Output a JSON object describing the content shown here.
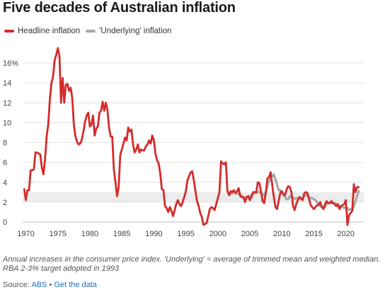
{
  "title": "Five decades of Australian inflation",
  "legend": [
    {
      "label": "Headline inflation",
      "color": "#d42b2b"
    },
    {
      "label": "'Underlying' inflation",
      "color": "#a9a9a9"
    }
  ],
  "note": "Annual increases in the consumer price index. 'Underlying' = average of trimmed mean and weighted median. RBA 2-3% target adopted in 1993",
  "source": {
    "prefix": "Source:",
    "name": "ABS",
    "separator": "•",
    "link": "Get the data"
  },
  "chart_data": {
    "type": "line",
    "title": "Five decades of Australian inflation",
    "xlabel": "",
    "ylabel": "",
    "xlim": [
      1969.5,
      2022.8
    ],
    "ylim": [
      -0.5,
      18
    ],
    "x_ticks": [
      1970,
      1975,
      1980,
      1985,
      1990,
      1995,
      2000,
      2005,
      2010,
      2015,
      2020
    ],
    "y_ticks": [
      0,
      2,
      4,
      6,
      8,
      10,
      12,
      14,
      16
    ],
    "y_tick_labels": [
      "0",
      "2",
      "4",
      "6",
      "8",
      "10",
      "12",
      "14",
      "16%"
    ],
    "target_band": {
      "low": 2,
      "high": 3,
      "color": "#ececec"
    },
    "grid": true,
    "series": [
      {
        "name": "Headline inflation",
        "color": "#d42b2b",
        "x": [
          1969.75,
          1970.0,
          1970.25,
          1970.5,
          1970.75,
          1971.0,
          1971.25,
          1971.5,
          1971.75,
          1972.0,
          1972.25,
          1972.5,
          1972.75,
          1973.0,
          1973.25,
          1973.5,
          1973.75,
          1974.0,
          1974.25,
          1974.5,
          1974.75,
          1975.0,
          1975.25,
          1975.5,
          1975.75,
          1976.0,
          1976.25,
          1976.5,
          1976.75,
          1977.0,
          1977.25,
          1977.5,
          1977.75,
          1978.0,
          1978.25,
          1978.5,
          1978.75,
          1979.0,
          1979.25,
          1979.5,
          1979.75,
          1980.0,
          1980.25,
          1980.5,
          1980.75,
          1981.0,
          1981.25,
          1981.5,
          1981.75,
          1982.0,
          1982.25,
          1982.5,
          1982.75,
          1983.0,
          1983.25,
          1983.5,
          1983.75,
          1984.0,
          1984.25,
          1984.5,
          1984.75,
          1985.0,
          1985.25,
          1985.5,
          1985.75,
          1986.0,
          1986.25,
          1986.5,
          1986.75,
          1987.0,
          1987.25,
          1987.5,
          1987.75,
          1988.0,
          1988.25,
          1988.5,
          1988.75,
          1989.0,
          1989.25,
          1989.5,
          1989.75,
          1990.0,
          1990.25,
          1990.5,
          1990.75,
          1991.0,
          1991.25,
          1991.5,
          1991.75,
          1992.0,
          1992.25,
          1992.5,
          1992.75,
          1993.0,
          1993.25,
          1993.5,
          1993.75,
          1994.0,
          1994.25,
          1994.5,
          1994.75,
          1995.0,
          1995.25,
          1995.5,
          1995.75,
          1996.0,
          1996.25,
          1996.5,
          1996.75,
          1997.0,
          1997.25,
          1997.5,
          1997.75,
          1998.0,
          1998.25,
          1998.5,
          1998.75,
          1999.0,
          1999.25,
          1999.5,
          1999.75,
          2000.0,
          2000.25,
          2000.5,
          2000.75,
          2001.0,
          2001.25,
          2001.5,
          2001.75,
          2002.0,
          2002.25,
          2002.5,
          2002.75,
          2003.0,
          2003.25,
          2003.5,
          2003.75,
          2004.0,
          2004.25,
          2004.5,
          2004.75,
          2005.0,
          2005.25,
          2005.5,
          2005.75,
          2006.0,
          2006.25,
          2006.5,
          2006.75,
          2007.0,
          2007.25,
          2007.5,
          2007.75,
          2008.0,
          2008.25,
          2008.5,
          2008.75,
          2009.0,
          2009.25,
          2009.5,
          2009.75,
          2010.0,
          2010.25,
          2010.5,
          2010.75,
          2011.0,
          2011.25,
          2011.5,
          2011.75,
          2012.0,
          2012.25,
          2012.5,
          2012.75,
          2013.0,
          2013.25,
          2013.5,
          2013.75,
          2014.0,
          2014.25,
          2014.5,
          2014.75,
          2015.0,
          2015.25,
          2015.5,
          2015.75,
          2016.0,
          2016.25,
          2016.5,
          2016.75,
          2017.0,
          2017.25,
          2017.5,
          2017.75,
          2018.0,
          2018.25,
          2018.5,
          2018.75,
          2019.0,
          2019.25,
          2019.5,
          2019.75,
          2020.0,
          2020.25,
          2020.5,
          2020.75,
          2021.0,
          2021.25,
          2021.5,
          2021.75,
          2022.0
        ],
        "values": [
          3.3,
          2.2,
          3.2,
          3.2,
          5.2,
          5.2,
          5.3,
          7.0,
          7.0,
          6.9,
          6.8,
          5.5,
          4.8,
          6.3,
          8.6,
          9.8,
          12.3,
          14.0,
          14.6,
          16.3,
          16.8,
          17.5,
          16.7,
          12.0,
          14.5,
          12.0,
          13.8,
          13.9,
          13.2,
          13.5,
          12.5,
          9.8,
          8.6,
          8.1,
          7.8,
          7.9,
          8.3,
          9.1,
          10.1,
          10.7,
          11.0,
          9.6,
          9.8,
          10.7,
          8.7,
          9.4,
          9.6,
          11.0,
          11.2,
          12.1,
          11.2,
          12.0,
          11.3,
          9.5,
          8.6,
          8.6,
          5.3,
          4.0,
          2.6,
          3.5,
          6.7,
          7.3,
          7.9,
          8.5,
          8.2,
          9.5,
          9.1,
          9.3,
          7.8,
          7.0,
          7.3,
          7.8,
          7.0,
          7.3,
          7.2,
          7.2,
          7.6,
          7.8,
          8.2,
          7.9,
          8.7,
          8.2,
          6.9,
          6.2,
          5.9,
          4.9,
          3.3,
          3.2,
          1.6,
          1.4,
          1.0,
          1.5,
          1.1,
          0.6,
          1.2,
          1.8,
          2.2,
          1.8,
          1.6,
          2.0,
          2.5,
          3.1,
          4.2,
          4.6,
          5.0,
          5.1,
          4.2,
          3.1,
          2.1,
          1.6,
          0.9,
          0.5,
          -0.3,
          -0.2,
          -0.1,
          0.6,
          1.3,
          1.5,
          1.4,
          1.2,
          1.8,
          2.4,
          3.0,
          6.1,
          5.9,
          5.8,
          6.0,
          3.1,
          2.7,
          3.1,
          3.0,
          3.2,
          2.9,
          3.1,
          3.4,
          2.6,
          2.5,
          2.5,
          2.0,
          2.5,
          2.6,
          2.2,
          2.5,
          3.0,
          3.0,
          3.0,
          4.0,
          3.9,
          3.0,
          2.1,
          1.9,
          3.0,
          4.4,
          4.5,
          5.0,
          3.7,
          2.5,
          1.5,
          1.3,
          2.1,
          2.9,
          3.1,
          2.8,
          2.7,
          3.3,
          3.6,
          3.5,
          3.0,
          1.6,
          1.2,
          1.8,
          2.2,
          2.5,
          2.4,
          2.2,
          2.9,
          3.0,
          2.9,
          2.3,
          1.7,
          1.5,
          1.3,
          1.5,
          1.7,
          1.7,
          2.0,
          1.5,
          1.3,
          1.8,
          2.1,
          1.9,
          1.9,
          2.1,
          1.9,
          1.8,
          1.6,
          1.8,
          1.3,
          1.6,
          1.7,
          1.8,
          2.2,
          -0.3,
          0.7,
          0.9,
          1.1,
          3.8,
          3.0,
          3.5,
          3.5
        ]
      },
      {
        "name": "'Underlying' inflation",
        "color": "#a9a9a9",
        "x": [
          2002.0,
          2002.25,
          2002.5,
          2002.75,
          2003.0,
          2003.25,
          2003.5,
          2003.75,
          2004.0,
          2004.25,
          2004.5,
          2004.75,
          2005.0,
          2005.25,
          2005.5,
          2005.75,
          2006.0,
          2006.25,
          2006.5,
          2006.75,
          2007.0,
          2007.25,
          2007.5,
          2007.75,
          2008.0,
          2008.25,
          2008.5,
          2008.75,
          2009.0,
          2009.25,
          2009.5,
          2009.75,
          2010.0,
          2010.25,
          2010.5,
          2010.75,
          2011.0,
          2011.25,
          2011.5,
          2011.75,
          2012.0,
          2012.25,
          2012.5,
          2012.75,
          2013.0,
          2013.25,
          2013.5,
          2013.75,
          2014.0,
          2014.25,
          2014.5,
          2014.75,
          2015.0,
          2015.25,
          2015.5,
          2015.75,
          2016.0,
          2016.25,
          2016.5,
          2016.75,
          2017.0,
          2017.25,
          2017.5,
          2017.75,
          2018.0,
          2018.25,
          2018.5,
          2018.75,
          2019.0,
          2019.25,
          2019.5,
          2019.75,
          2020.0,
          2020.25,
          2020.5,
          2020.75,
          2021.0,
          2021.25,
          2021.5,
          2021.75,
          2022.0
        ],
        "values": [
          2.8,
          2.9,
          3.0,
          3.0,
          2.9,
          2.8,
          2.8,
          2.6,
          2.5,
          2.4,
          2.5,
          2.6,
          2.6,
          2.7,
          2.8,
          2.9,
          2.9,
          3.0,
          3.0,
          3.0,
          2.8,
          2.7,
          3.0,
          3.6,
          4.1,
          4.4,
          4.6,
          4.8,
          4.3,
          3.8,
          3.2,
          3.2,
          2.9,
          2.7,
          2.5,
          2.3,
          2.3,
          2.6,
          2.5,
          2.5,
          2.3,
          2.4,
          2.4,
          2.4,
          2.3,
          2.4,
          2.6,
          2.7,
          2.6,
          2.5,
          2.4,
          2.4,
          2.3,
          2.2,
          2.0,
          1.8,
          1.6,
          1.5,
          1.5,
          1.5,
          1.8,
          1.9,
          1.9,
          1.9,
          1.9,
          1.9,
          1.8,
          1.7,
          1.6,
          1.5,
          1.5,
          1.4,
          1.5,
          1.4,
          1.2,
          1.3,
          1.2,
          1.6,
          2.1,
          2.6,
          3.1
        ]
      }
    ]
  }
}
